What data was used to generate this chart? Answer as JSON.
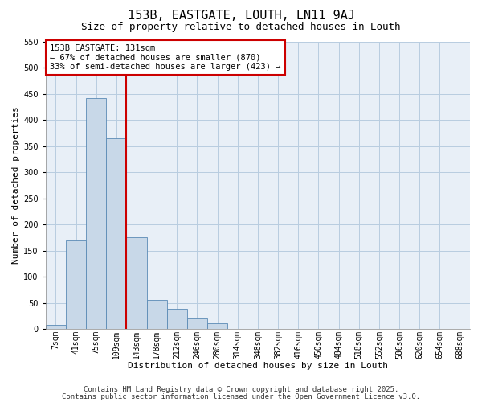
{
  "title": "153B, EASTGATE, LOUTH, LN11 9AJ",
  "subtitle": "Size of property relative to detached houses in Louth",
  "xlabel": "Distribution of detached houses by size in Louth",
  "ylabel": "Number of detached properties",
  "bar_labels": [
    "7sqm",
    "41sqm",
    "75sqm",
    "109sqm",
    "143sqm",
    "178sqm",
    "212sqm",
    "246sqm",
    "280sqm",
    "314sqm",
    "348sqm",
    "382sqm",
    "416sqm",
    "450sqm",
    "484sqm",
    "518sqm",
    "552sqm",
    "586sqm",
    "620sqm",
    "654sqm",
    "688sqm"
  ],
  "bar_values": [
    8,
    170,
    442,
    365,
    176,
    55,
    38,
    21,
    11,
    1,
    0,
    0,
    0,
    0,
    0,
    0,
    0,
    0,
    0,
    0,
    0
  ],
  "bar_color": "#c8d8e8",
  "bar_edgecolor": "#5a8ab5",
  "grid_color": "#b8cce0",
  "bg_color": "#e8eff7",
  "vline_x_idx": 4,
  "vline_color": "#cc0000",
  "annotation_text": "153B EASTGATE: 131sqm\n← 67% of detached houses are smaller (870)\n33% of semi-detached houses are larger (423) →",
  "annotation_box_edgecolor": "#cc0000",
  "ylim": [
    0,
    550
  ],
  "yticks": [
    0,
    50,
    100,
    150,
    200,
    250,
    300,
    350,
    400,
    450,
    500,
    550
  ],
  "footer1": "Contains HM Land Registry data © Crown copyright and database right 2025.",
  "footer2": "Contains public sector information licensed under the Open Government Licence v3.0.",
  "title_fontsize": 11,
  "subtitle_fontsize": 9,
  "axis_label_fontsize": 8,
  "tick_fontsize": 7,
  "annotation_fontsize": 7.5,
  "footer_fontsize": 6.5
}
